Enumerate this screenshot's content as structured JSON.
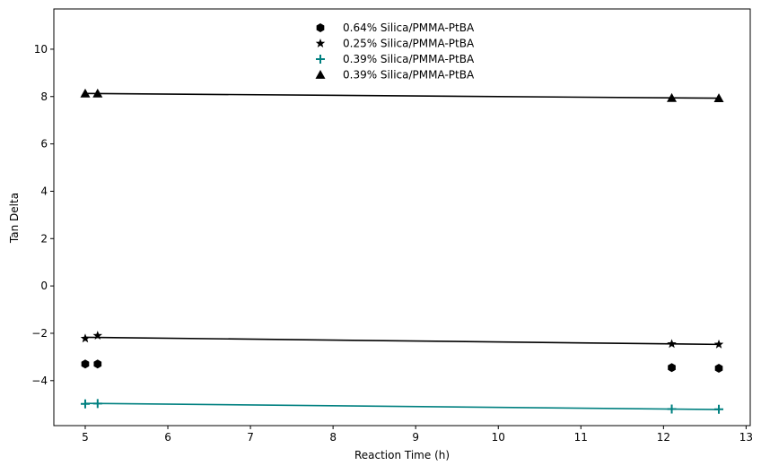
{
  "chart_data": {
    "type": "scatter",
    "xlabel": "Reaction Time (h)",
    "ylabel": "Tan Delta",
    "xlim": [
      4.62,
      13.05
    ],
    "ylim": [
      -5.9,
      11.7
    ],
    "x_ticks": [
      5,
      6,
      7,
      8,
      9,
      10,
      11,
      12,
      13
    ],
    "y_ticks": [
      -4,
      -2,
      0,
      2,
      4,
      6,
      8,
      10
    ],
    "legend_position": "top-center",
    "grid": false,
    "series": [
      {
        "name": "0.64% Silica/PMMA-PtBA",
        "marker": "hexagon",
        "color": "#000000",
        "x": [
          5.0,
          5.15,
          12.1,
          12.67
        ],
        "y": [
          -3.3,
          -3.3,
          -3.45,
          -3.48
        ],
        "fit_line": false
      },
      {
        "name": "0.25% Silica/PMMA-PtBA",
        "marker": "star",
        "color": "#000000",
        "x": [
          5.0,
          5.15,
          12.1,
          12.67
        ],
        "y": [
          -2.22,
          -2.1,
          -2.45,
          -2.47
        ],
        "fit_line": true,
        "fit_color": "#000000",
        "fit_x": [
          5.0,
          12.67
        ],
        "fit_y": [
          -2.17,
          -2.47
        ]
      },
      {
        "name": "0.39% Silica/PMMA-PtBA",
        "marker": "plus",
        "color": "#008080",
        "x": [
          5.0,
          5.15,
          12.1,
          12.67
        ],
        "y": [
          -4.98,
          -4.97,
          -5.2,
          -5.21
        ],
        "fit_line": true,
        "fit_color": "#008080",
        "fit_x": [
          5.0,
          12.67
        ],
        "fit_y": [
          -4.96,
          -5.22
        ]
      },
      {
        "name": "0.39% Silica/PMMA-PtBA",
        "marker": "triangle",
        "color": "#000000",
        "x": [
          5.0,
          5.15,
          12.1,
          12.67
        ],
        "y": [
          8.13,
          8.13,
          7.94,
          7.93
        ],
        "fit_line": true,
        "fit_color": "#000000",
        "fit_x": [
          5.0,
          12.67
        ],
        "fit_y": [
          8.13,
          7.93
        ]
      }
    ]
  }
}
